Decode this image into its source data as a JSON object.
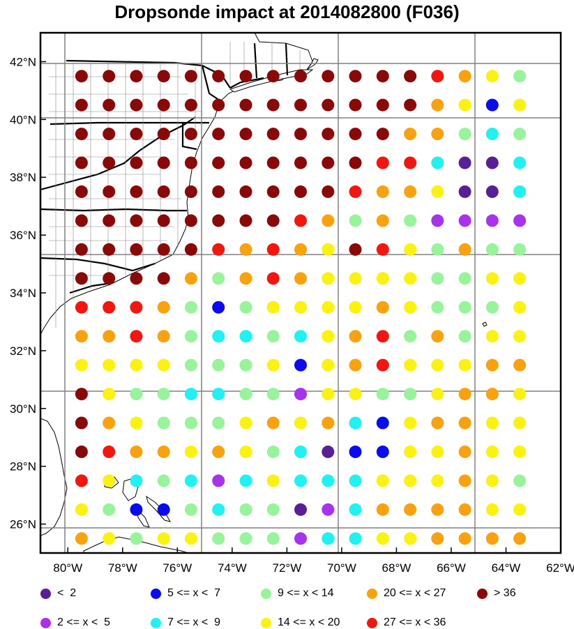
{
  "title": "Dropsonde impact at 2014082800 (F036)",
  "lat_labels": [
    "42°N",
    "40°N",
    "38°N",
    "36°N",
    "34°N",
    "32°N",
    "30°N",
    "28°N",
    "26°N"
  ],
  "lon_labels": [
    "80°W",
    "78°W",
    "76°W",
    "74°W",
    "72°W",
    "70°W",
    "68°W",
    "66°W",
    "64°W",
    "62°W"
  ],
  "extent": {
    "lon_min": -81,
    "lon_max": -62,
    "lat_min": 25,
    "lat_max": 43
  },
  "legend": [
    {
      "label": "<  2",
      "color": "#5a1e96"
    },
    {
      "label": "2 <= x <  5",
      "color": "#a832ee"
    },
    {
      "label": "5 <= x <  7",
      "color": "#0b0bf0"
    },
    {
      "label": "7 <= x <  9",
      "color": "#1ef2f2"
    },
    {
      "label": "9 <= x < 14",
      "color": "#98f49a"
    },
    {
      "label": "14 <= x < 20",
      "color": "#fbf20d"
    },
    {
      "label": "20 <= x < 27",
      "color": "#f9a20e"
    },
    {
      "label": "27 <= x < 36",
      "color": "#f5150f"
    },
    {
      "label": "> 36",
      "color": "#8b0808"
    }
  ],
  "chart_data": {
    "type": "scatter",
    "description_key": "category index per point: 0:<2, 1:2-5, 2:5-7, 3:7-9, 4:9-14, 5:14-20, 6:20-27, 7:27-36, 8:>36",
    "lon": [
      -79.5,
      -78.5,
      -77.5,
      -76.5,
      -75.5,
      -74.5,
      -73.5,
      -72.5,
      -71.5,
      -70.5,
      -69.5,
      -68.5,
      -67.5,
      -66.5,
      -65.5,
      -64.5,
      -63.5
    ],
    "lat": [
      41.5,
      40.5,
      39.5,
      38.5,
      37.5,
      36.5,
      35.5,
      34.5,
      33.5,
      32.5,
      31.5,
      30.5,
      29.5,
      28.5,
      27.5,
      26.5,
      25.5
    ],
    "categories": [
      [
        8,
        8,
        8,
        8,
        8,
        8,
        8,
        8,
        8,
        8,
        8,
        8,
        8,
        7,
        6,
        5,
        4
      ],
      [
        8,
        8,
        8,
        8,
        8,
        8,
        8,
        8,
        8,
        8,
        8,
        8,
        8,
        6,
        5,
        2,
        5
      ],
      [
        8,
        8,
        8,
        8,
        8,
        8,
        8,
        8,
        8,
        8,
        8,
        8,
        6,
        6,
        4,
        3,
        4
      ],
      [
        8,
        8,
        8,
        8,
        8,
        8,
        8,
        8,
        8,
        8,
        8,
        7,
        7,
        3,
        0,
        0,
        3
      ],
      [
        8,
        8,
        8,
        8,
        8,
        8,
        8,
        8,
        8,
        8,
        7,
        6,
        6,
        5,
        0,
        0,
        3
      ],
      [
        8,
        8,
        8,
        8,
        8,
        8,
        8,
        8,
        7,
        6,
        4,
        6,
        4,
        1,
        1,
        1,
        1
      ],
      [
        8,
        8,
        8,
        8,
        8,
        7,
        6,
        7,
        6,
        5,
        8,
        7,
        5,
        4,
        6,
        4,
        4
      ],
      [
        8,
        8,
        8,
        8,
        6,
        4,
        6,
        7,
        6,
        5,
        5,
        5,
        5,
        4,
        4,
        5,
        5
      ],
      [
        7,
        7,
        7,
        6,
        4,
        2,
        4,
        5,
        5,
        5,
        5,
        6,
        5,
        4,
        4,
        4,
        5
      ],
      [
        6,
        6,
        7,
        6,
        4,
        3,
        3,
        4,
        3,
        5,
        6,
        7,
        4,
        6,
        4,
        5,
        5
      ],
      [
        5,
        5,
        5,
        5,
        4,
        4,
        4,
        5,
        2,
        5,
        6,
        7,
        5,
        5,
        5,
        6,
        6
      ],
      [
        8,
        5,
        4,
        4,
        3,
        3,
        4,
        4,
        1,
        5,
        5,
        4,
        4,
        5,
        6,
        6,
        5
      ],
      [
        8,
        6,
        5,
        4,
        4,
        4,
        5,
        6,
        5,
        6,
        3,
        2,
        5,
        6,
        6,
        5,
        5
      ],
      [
        8,
        7,
        6,
        6,
        5,
        6,
        5,
        4,
        3,
        0,
        2,
        2,
        5,
        5,
        6,
        5,
        5
      ],
      [
        7,
        5,
        3,
        4,
        3,
        1,
        3,
        5,
        3,
        3,
        3,
        5,
        5,
        5,
        6,
        5,
        4
      ],
      [
        5,
        4,
        2,
        2,
        4,
        3,
        4,
        4,
        0,
        1,
        3,
        6,
        6,
        6,
        6,
        5,
        5
      ],
      [
        6,
        5,
        4,
        5,
        5,
        4,
        4,
        4,
        1,
        3,
        3,
        5,
        5,
        6,
        6,
        6,
        6
      ]
    ]
  }
}
